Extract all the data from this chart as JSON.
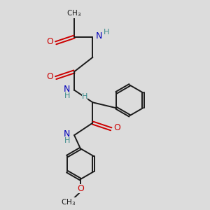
{
  "bg_color": "#dcdcdc",
  "bond_color": "#1a1a1a",
  "oxygen_color": "#cc0000",
  "nitrogen_color": "#0000bb",
  "hydrogen_color": "#3a8a8a",
  "figsize": [
    3.0,
    3.0
  ],
  "dpi": 100,
  "xlim": [
    0,
    10
  ],
  "ylim": [
    0,
    10
  ]
}
